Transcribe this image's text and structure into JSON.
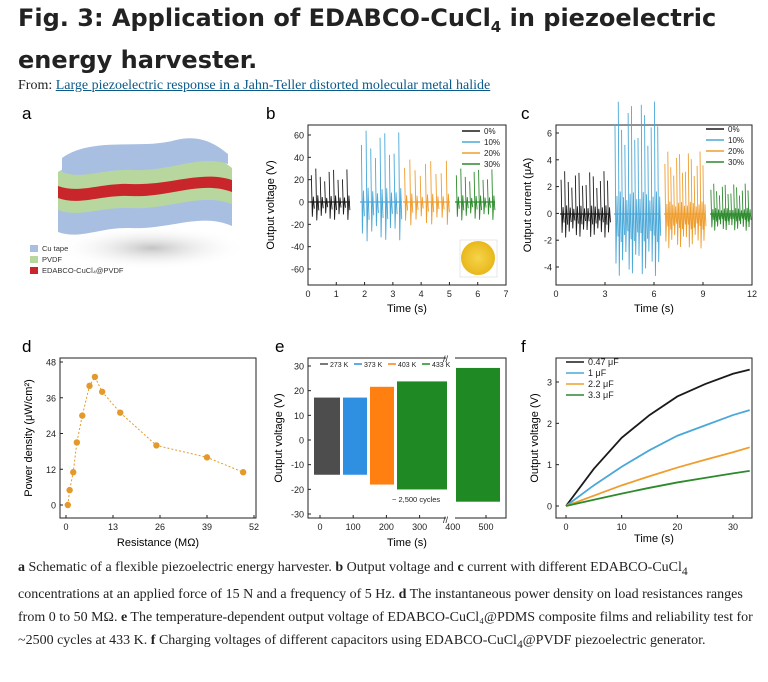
{
  "title": {
    "pre": "Fig. 3: Application of EDABCO-CuCl",
    "sub": "4",
    "post": " in piezoelectric energy harvester."
  },
  "from": {
    "label": "From: ",
    "link": "Large piezoelectric response in a Jahn-Teller distorted molecular metal halide"
  },
  "panels": {
    "a": {
      "letter": "a",
      "legend": [
        "Cu tape",
        "PVDF",
        "EDABCO-CuCl₄@PVDF"
      ],
      "colors": [
        "#a9bfe2",
        "#b8d79f",
        "#c8262a"
      ]
    },
    "b": {
      "letter": "b",
      "xlabel": "Time (s)",
      "ylabel": "Output voltage (V)",
      "yticks": [
        "60",
        "40",
        "20",
        "0",
        "-20",
        "-40",
        "-60"
      ],
      "xticks": [
        "0",
        "1",
        "2",
        "3",
        "4",
        "5",
        "6",
        "7"
      ],
      "legend": [
        "0%",
        "10%",
        "20%",
        "30%"
      ],
      "amplitudes": [
        30,
        64,
        38,
        30
      ]
    },
    "c": {
      "letter": "c",
      "xlabel": "Time (s)",
      "ylabel": "Output current (μA)",
      "yticks": [
        "6",
        "4",
        "2",
        "0",
        "-2",
        "-4"
      ],
      "xticks": [
        "0",
        "3",
        "6",
        "9",
        "12"
      ],
      "legend": [
        "0%",
        "10%",
        "20%",
        "30%"
      ],
      "amplitudes": [
        2.4,
        6.3,
        3.5,
        1.7
      ]
    },
    "d": {
      "letter": "d",
      "xlabel": "Resistance (MΩ)",
      "ylabel": "Power density (μW/cm²)",
      "yticks": [
        "48",
        "36",
        "24",
        "12",
        "0"
      ],
      "xticks": [
        "0",
        "13",
        "26",
        "39",
        "52"
      ]
    },
    "e": {
      "letter": "e",
      "xlabel": "Time (s)",
      "ylabel": "Output voltage (V)",
      "yticks": [
        "30",
        "20",
        "10",
        "0",
        "-10",
        "-20",
        "-30"
      ],
      "xticks": [
        "0",
        "100",
        "200",
        "300",
        "400",
        "500"
      ],
      "legend": [
        "273 K",
        "373 K",
        "403 K",
        "433 K"
      ],
      "annotation": "~ 2,500 cycles"
    },
    "f": {
      "letter": "f",
      "xlabel": "Time (s)",
      "ylabel": "Output voltage (V)",
      "yticks": [
        "3",
        "2",
        "1",
        "0"
      ],
      "xticks": [
        "0",
        "10",
        "20",
        "30"
      ],
      "legend": [
        "0.47 μF",
        "1 μF",
        "2.2 μF",
        "3.3 μF"
      ]
    }
  },
  "colors": {
    "c0": "#1a1a1a",
    "c10": "#4aa8d8",
    "c20": "#ef9d2e",
    "c30": "#2d8a2d",
    "e1": "#4d4d4d",
    "e2": "#2f8fe0",
    "e3": "#ff7f11",
    "e4": "#1f8a23",
    "d": "#e39a2b"
  },
  "chart_data": [
    {
      "type": "line",
      "panel": "d",
      "series": [
        {
          "x": [
            0.5,
            1,
            2,
            3,
            4.5,
            6.5,
            8,
            10,
            15,
            25,
            39,
            49
          ],
          "values": [
            0,
            5,
            11,
            21,
            30,
            40,
            43,
            38,
            31,
            20,
            16,
            11
          ]
        }
      ],
      "xlim": [
        0,
        52
      ],
      "ylim": [
        -2,
        48
      ]
    },
    {
      "type": "line",
      "panel": "f",
      "series": [
        {
          "name": "0.47 μF",
          "x": [
            0,
            5,
            10,
            15,
            20,
            25,
            30,
            33
          ],
          "values": [
            0,
            0.9,
            1.65,
            2.2,
            2.65,
            2.95,
            3.2,
            3.3
          ]
        },
        {
          "name": "1 μF",
          "x": [
            0,
            5,
            10,
            15,
            20,
            25,
            30,
            33
          ],
          "values": [
            0,
            0.5,
            0.95,
            1.35,
            1.7,
            1.95,
            2.2,
            2.32
          ]
        },
        {
          "name": "2.2 μF",
          "x": [
            0,
            5,
            10,
            15,
            20,
            25,
            30,
            33
          ],
          "values": [
            0,
            0.25,
            0.5,
            0.72,
            0.93,
            1.12,
            1.3,
            1.42
          ]
        },
        {
          "name": "3.3 μF",
          "x": [
            0,
            5,
            10,
            15,
            20,
            25,
            30,
            33
          ],
          "values": [
            0,
            0.15,
            0.3,
            0.44,
            0.57,
            0.68,
            0.79,
            0.85
          ]
        }
      ],
      "xlim": [
        -3,
        35
      ],
      "ylim": [
        -0.1,
        3.6
      ]
    }
  ],
  "caption": {
    "a": "a",
    "a_text": " Schematic of a flexible piezoelectric energy harvester. ",
    "b": "b",
    "b_text": " Output voltage and ",
    "c": "c",
    "c_text": " current with different EDABCO-CuCl",
    "sub1": "4",
    "c_text2": " concentrations at an applied force of 15 N and a frequency of 5 Hz. ",
    "d": "d",
    "d_text": " The instantaneous power density on load resistances ranges from 0 to 50 MΩ. ",
    "e": "e",
    "e_text": " The temperature-dependent output voltage of EDABCO-CuCl₄@PDMS composite films and reliability test for ~2500 cycles at 433 K. ",
    "f": "f",
    "f_text": " Charging voltages of different capacitors using EDABCO-CuCl",
    "sub2": "4",
    "f_text2": "@PVDF piezoelectric generator."
  }
}
